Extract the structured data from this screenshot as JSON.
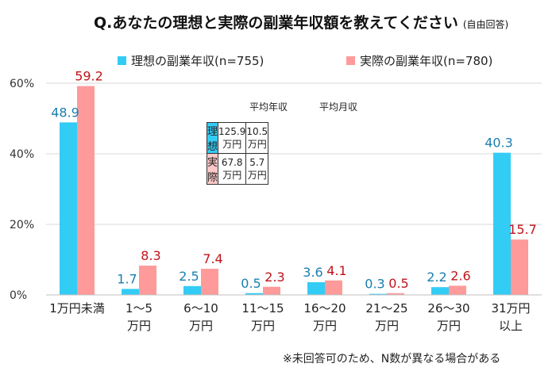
{
  "title": "Q.あなたの理想と実際の副業年収額を教えてください",
  "title_note": "(自由回答)",
  "footnote": "※未回答可のため、N数が異なる場合がある",
  "colors": {
    "ideal": "#33ccf5",
    "actual": "#ff9a9a",
    "ideal_label": "#1a7fb0",
    "actual_label": "#c0141c"
  },
  "summary_table": {
    "headers": [
      "平均年収",
      "平均月収"
    ],
    "rows": [
      {
        "label": "理想",
        "annual": "125.9万円",
        "monthly": "10.5万円",
        "bg": "#33ccf5"
      },
      {
        "label": "実際",
        "annual": "67.8万円",
        "monthly": "5.7万円",
        "bg": "#ffc9c9"
      }
    ]
  },
  "chart_data": {
    "type": "bar",
    "categories": [
      "1万円未満",
      "1〜5\n万円",
      "6〜10\n万円",
      "11〜15\n万円",
      "16〜20\n万円",
      "21〜25\n万円",
      "26〜30\n万円",
      "31万円\n以上"
    ],
    "series": [
      {
        "name": "理想の副業年収(n=755)",
        "values": [
          48.9,
          1.7,
          2.5,
          0.5,
          3.6,
          0.3,
          2.2,
          40.3
        ]
      },
      {
        "name": "実際の副業年収(n=780)",
        "values": [
          59.2,
          8.3,
          7.4,
          2.3,
          4.1,
          0.5,
          2.6,
          15.7
        ]
      }
    ],
    "ylim": [
      0,
      60
    ],
    "yticks": [
      "0%",
      "20%",
      "40%",
      "60%"
    ],
    "legend_position": "top"
  }
}
